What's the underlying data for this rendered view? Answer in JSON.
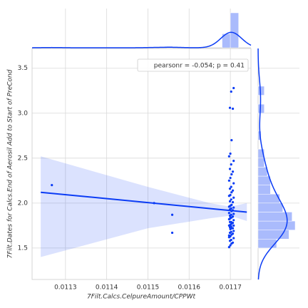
{
  "chart_data": {
    "type": "scatter",
    "xlabel": "7Filt.Calcs.CelpureAmount/CPPWt",
    "ylabel": "7Filt.Dates for Calcs.End of Aerosil Add to Start of PreCond",
    "annotation": "pearsonr = -0.054; p = 0.41",
    "color": "#0b3cf5",
    "xlim": [
      0.011219,
      0.01175
    ],
    "ylim": [
      1.15,
      3.72
    ],
    "xticks": [
      0.0113,
      0.0114,
      0.0115,
      0.0116,
      0.0117
    ],
    "yticks": [
      1.5,
      {
        "value": 2,
        "label": "2.0"
      },
      2.5,
      {
        "value": 3,
        "label": "3.0"
      },
      3.5
    ],
    "grid": true,
    "legend": "upper right",
    "x": [
      0.011267,
      0.011515,
      0.011559,
      0.011559,
      0.011697,
      0.0117,
      0.011703,
      0.011706,
      0.011699,
      0.011702,
      0.011708,
      0.011697,
      0.0117,
      0.011703,
      0.011706,
      0.011699,
      0.011702,
      0.011708,
      0.011697,
      0.0117,
      0.011703,
      0.011706,
      0.011699,
      0.011702,
      0.011708,
      0.011697,
      0.0117,
      0.011703,
      0.011706,
      0.011699,
      0.011702,
      0.011708,
      0.011697,
      0.0117,
      0.011703,
      0.011706,
      0.011699,
      0.011702,
      0.011708,
      0.011697,
      0.0117,
      0.011703,
      0.011706,
      0.011699,
      0.011702,
      0.011708,
      0.011697,
      0.0117,
      0.011703,
      0.011706,
      0.011699,
      0.011702,
      0.011708,
      0.011697,
      0.0117,
      0.011703,
      0.011706,
      0.011699,
      0.011702,
      0.011708,
      0.011697,
      0.0117,
      0.011703,
      0.011706,
      0.011699,
      0.011702,
      0.011708,
      0.011697,
      0.0117,
      0.011703,
      0.011706,
      0.011699,
      0.011702,
      0.011708
    ],
    "y": [
      2.2,
      2.0,
      1.87,
      1.67,
      1.51,
      1.53,
      1.55,
      1.56,
      1.58,
      1.59,
      1.61,
      1.62,
      1.63,
      1.65,
      1.66,
      1.67,
      1.68,
      1.69,
      1.64,
      1.71,
      1.72,
      1.72,
      1.73,
      1.74,
      1.75,
      1.75,
      1.76,
      1.77,
      1.78,
      1.79,
      1.79,
      1.81,
      1.82,
      1.83,
      1.84,
      1.85,
      1.86,
      1.87,
      1.88,
      1.89,
      1.84,
      1.91,
      1.92,
      1.93,
      1.94,
      1.95,
      1.96,
      1.97,
      1.98,
      2.01,
      2.02,
      2.04,
      2.06,
      2.08,
      2.09,
      2.12,
      2.14,
      2.16,
      2.18,
      2.22,
      2.25,
      2.28,
      2.32,
      2.35,
      2.38,
      2.43,
      2.47,
      2.52,
      2.55,
      2.7,
      3.05,
      3.06,
      3.24,
      3.28
    ],
    "regression": {
      "x": [
        0.01124,
        0.01174
      ],
      "y": [
        2.12,
        1.9
      ]
    },
    "confidence_band": {
      "x": [
        0.01124,
        0.0115,
        0.01165,
        0.0117,
        0.01174
      ],
      "upper": [
        2.52,
        2.18,
        2.0,
        1.96,
        2.0
      ],
      "lower": [
        1.4,
        1.72,
        1.83,
        1.86,
        1.8
      ]
    },
    "x_hist": {
      "bins": [
        0.01126,
        0.01128,
        0.0113,
        0.01132,
        0.01134,
        0.01136,
        0.01138,
        0.0114,
        0.01142,
        0.01144,
        0.01146,
        0.01148,
        0.0115,
        0.01152,
        0.01154,
        0.01156,
        0.01158,
        0.0116,
        0.01162,
        0.01164,
        0.01166,
        0.01168,
        0.0117,
        0.01172
      ],
      "counts": [
        1,
        0,
        0,
        0,
        0,
        0,
        0,
        0,
        0,
        0,
        0,
        0,
        1,
        0,
        2,
        0,
        0,
        0,
        0,
        0,
        0,
        20,
        50
      ]
    },
    "y_hist": {
      "bins": [
        1.5,
        1.6,
        1.7,
        1.8,
        1.9,
        2.0,
        2.1,
        2.2,
        2.3,
        2.4,
        2.5,
        2.6,
        2.7,
        2.8,
        2.9,
        3.0,
        3.1,
        3.2,
        3.3
      ],
      "counts": [
        6,
        10,
        12,
        11,
        8,
        7,
        4,
        4,
        3,
        2,
        2,
        0,
        1,
        0,
        0,
        2,
        0,
        2
      ]
    }
  }
}
